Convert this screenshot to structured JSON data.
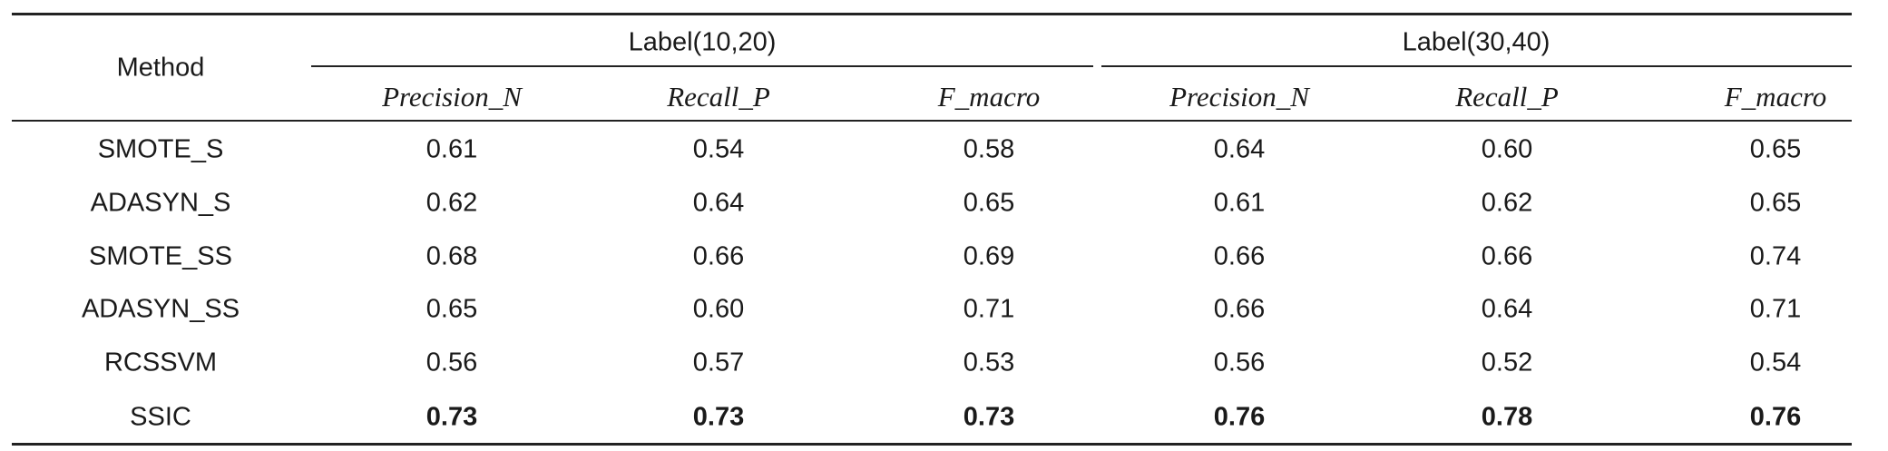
{
  "header": {
    "method": "Method",
    "groups": [
      {
        "label": "Label(10,20)",
        "metrics": [
          "Precision_N",
          "Recall_P",
          "F_macro"
        ]
      },
      {
        "label": "Label(30,40)",
        "metrics": [
          "Precision_N",
          "Recall_P",
          "F_macro"
        ]
      }
    ]
  },
  "table": {
    "rows": [
      {
        "method": "SMOTE_S",
        "values": [
          "0.61",
          "0.54",
          "0.58",
          "0.64",
          "0.60",
          "0.65"
        ]
      },
      {
        "method": "ADASYN_S",
        "values": [
          "0.62",
          "0.64",
          "0.65",
          "0.61",
          "0.62",
          "0.65"
        ]
      },
      {
        "method": "SMOTE_SS",
        "values": [
          "0.68",
          "0.66",
          "0.69",
          "0.66",
          "0.66",
          "0.74"
        ]
      },
      {
        "method": "ADASYN_SS",
        "values": [
          "0.65",
          "0.60",
          "0.71",
          "0.66",
          "0.64",
          "0.71"
        ]
      },
      {
        "method": "RCSSVM",
        "values": [
          "0.56",
          "0.57",
          "0.53",
          "0.56",
          "0.52",
          "0.54"
        ]
      },
      {
        "method": "SSIC",
        "values": [
          "0.73",
          "0.73",
          "0.73",
          "0.76",
          "0.78",
          "0.76"
        ],
        "bold": true
      }
    ]
  }
}
